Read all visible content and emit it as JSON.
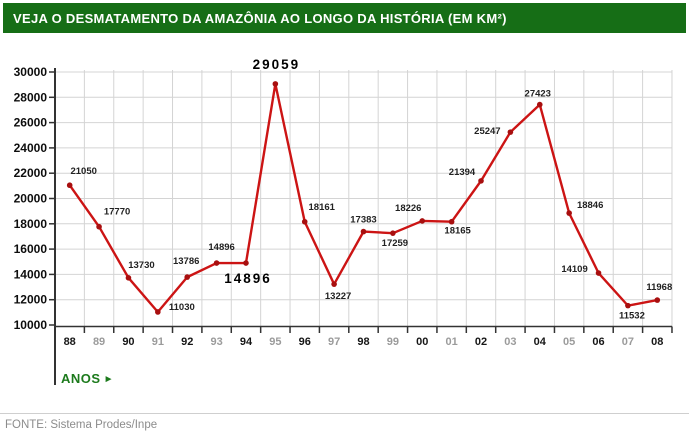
{
  "header": {
    "title": "VEJA O DESMATAMENTO DA AMAZÔNIA AO LONGO DA HISTÓRIA (EM KM²)",
    "bg_color": "#166e16",
    "text_color": "#ffffff"
  },
  "chart_data": {
    "type": "line",
    "title": "VEJA O DESMATAMENTO DA AMAZÔNIA AO LONGO DA HISTÓRIA (EM KM²)",
    "categories": [
      "88",
      "89",
      "90",
      "91",
      "92",
      "93",
      "94",
      "95",
      "96",
      "97",
      "98",
      "99",
      "00",
      "01",
      "02",
      "03",
      "04",
      "05",
      "06",
      "07",
      "08"
    ],
    "values": [
      21050,
      17770,
      13730,
      11030,
      13786,
      14896,
      14896,
      29059,
      18161,
      13227,
      17383,
      17259,
      18226,
      18165,
      21394,
      25247,
      27423,
      18846,
      14109,
      11532,
      11968
    ],
    "emphasized_years": [
      "94",
      "95"
    ],
    "ylim": [
      10000,
      30000
    ],
    "ytick_step": 2000,
    "yticks": [
      10000,
      12000,
      14000,
      16000,
      18000,
      20000,
      22000,
      24000,
      26000,
      28000,
      30000
    ],
    "xlabel": "ANOS",
    "xlabel_arrow": "►",
    "xlabel_color": "#1c7a1c",
    "ylabel": "",
    "grid": true,
    "legend": "none",
    "line_color": "#cc1414",
    "marker_color": "#a80f0f",
    "label_color": "#222222",
    "emphasis_label_color": "#000000",
    "x_tick_dark_color": "#161616",
    "x_tick_light_color": "#9b9b9b"
  },
  "footer": {
    "source": "FONTE: Sistema Prodes/Inpe"
  }
}
